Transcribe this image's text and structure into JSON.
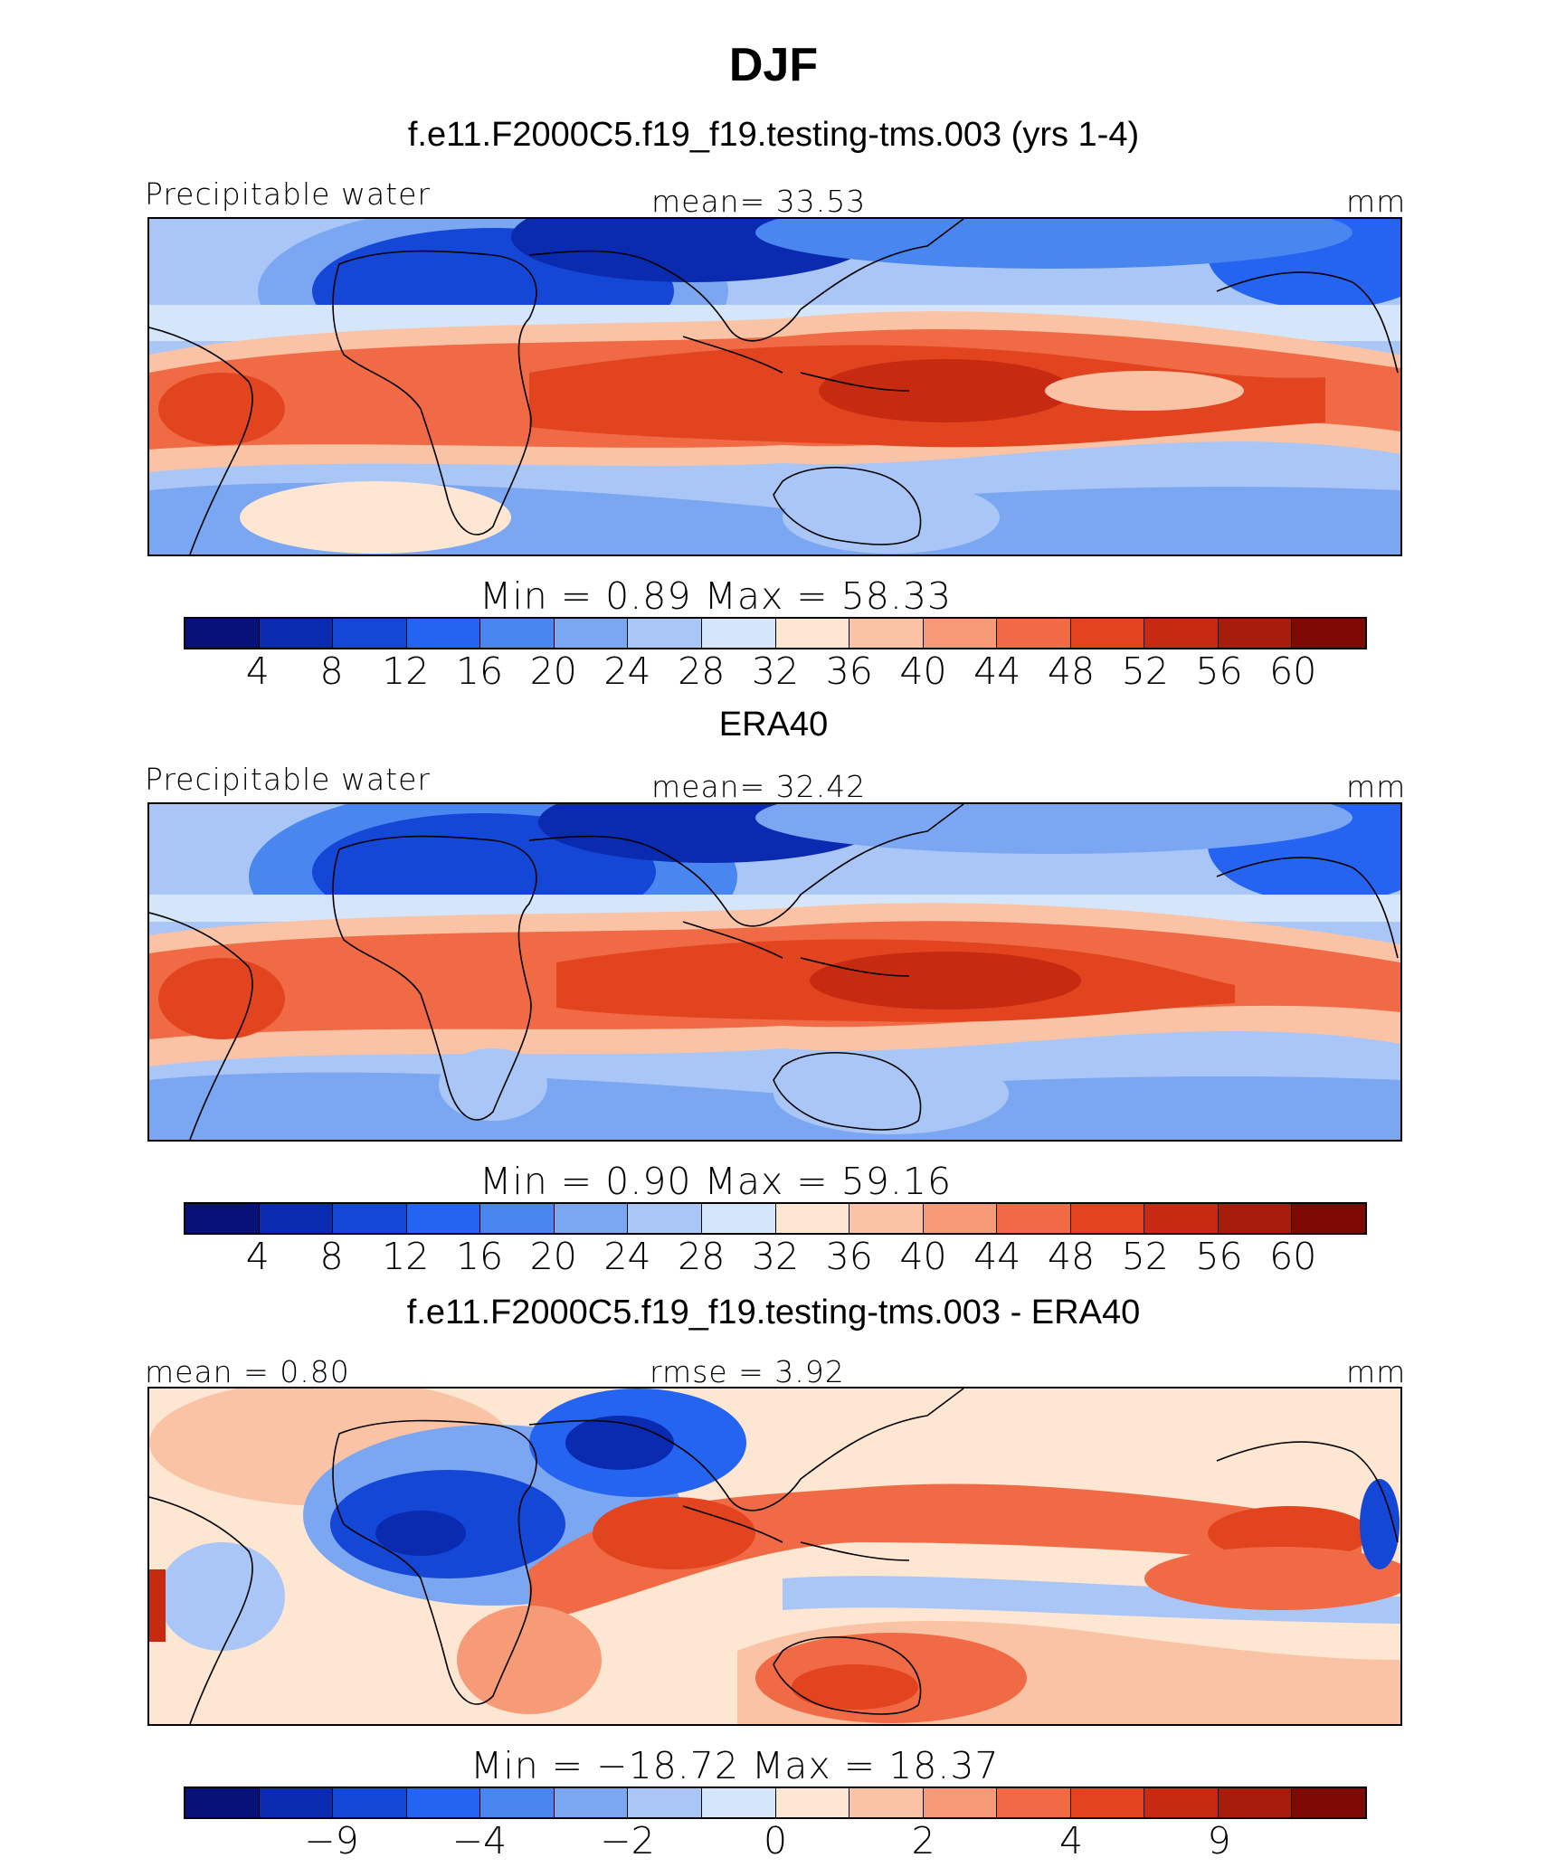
{
  "title": "DJF",
  "units": "mm",
  "colors": {
    "abs_scale": [
      "#08107a",
      "#0a2ab0",
      "#1447d6",
      "#2464f0",
      "#4a86f0",
      "#7aa6f2",
      "#a9c6f6",
      "#d5e6fb",
      "#fde6d2",
      "#fbc3a6",
      "#f79a78",
      "#f06b45",
      "#e2441f",
      "#c62a10",
      "#a81c0b",
      "#7e0a06"
    ],
    "diff_scale": [
      "#08107a",
      "#0a2ab0",
      "#1447d6",
      "#2464f0",
      "#4a86f0",
      "#7aa6f2",
      "#a9c6f6",
      "#d5e6fb",
      "#fde6d2",
      "#fbc3a6",
      "#f79a78",
      "#f06b45",
      "#e2441f",
      "#c62a10",
      "#a81c0b",
      "#7e0a06"
    ]
  },
  "panels": [
    {
      "title": "f.e11.F2000C5.f19_f19.testing-tms.003 (yrs 1-4)",
      "left_label": "Precipitable water",
      "center_label": "mean=   33.53",
      "right_label": "mm",
      "minmax": "Min  =    0.89  Max  =   58.33"
    },
    {
      "title": "ERA40",
      "left_label": "Precipitable water",
      "center_label": "mean=   32.42",
      "right_label": "mm",
      "minmax": "Min  =    0.90  Max  =   59.16"
    },
    {
      "title": "f.e11.F2000C5.f19_f19.testing-tms.003 - ERA40",
      "left_label": "mean =    0.80",
      "center_label": "rmse =    3.92",
      "right_label": "mm",
      "minmax": "Min  = −18.72  Max  =   18.37"
    }
  ],
  "chart_data": [
    {
      "type": "heatmap",
      "title": "f.e11.F2000C5.f19_f19.testing-tms.003 (yrs 1-4)",
      "variable": "Precipitable water",
      "units": "mm",
      "mean": 33.53,
      "min": 0.89,
      "max": 58.33,
      "contour_levels": [
        4,
        8,
        12,
        16,
        20,
        24,
        28,
        32,
        36,
        40,
        44,
        48,
        52,
        56,
        60
      ],
      "colorbar_tick_labels": [
        "4",
        "8",
        "12",
        "16",
        "20",
        "24",
        "28",
        "32",
        "36",
        "40",
        "44",
        "48",
        "52",
        "56",
        "60"
      ]
    },
    {
      "type": "heatmap",
      "title": "ERA40",
      "variable": "Precipitable water",
      "units": "mm",
      "mean": 32.42,
      "min": 0.9,
      "max": 59.16,
      "contour_levels": [
        4,
        8,
        12,
        16,
        20,
        24,
        28,
        32,
        36,
        40,
        44,
        48,
        52,
        56,
        60
      ],
      "colorbar_tick_labels": [
        "4",
        "8",
        "12",
        "16",
        "20",
        "24",
        "28",
        "32",
        "36",
        "40",
        "44",
        "48",
        "52",
        "56",
        "60"
      ]
    },
    {
      "type": "heatmap",
      "title": "f.e11.F2000C5.f19_f19.testing-tms.003 - ERA40",
      "units": "mm",
      "mean": 0.8,
      "rmse": 3.92,
      "min": -18.72,
      "max": 18.37,
      "colorbar_tick_labels": [
        "−9",
        "−4",
        "−2",
        "0",
        "2",
        "4",
        "9"
      ],
      "colorbar_tick_boundaries": [
        2,
        4,
        6,
        8,
        10,
        12,
        14
      ]
    }
  ]
}
